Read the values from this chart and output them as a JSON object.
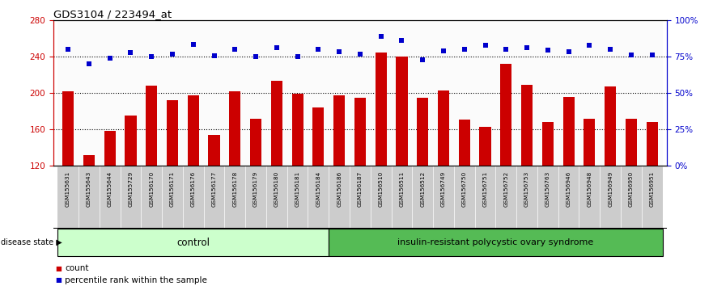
{
  "title": "GDS3104 / 223494_at",
  "samples": [
    "GSM155631",
    "GSM155643",
    "GSM155644",
    "GSM155729",
    "GSM156170",
    "GSM156171",
    "GSM156176",
    "GSM156177",
    "GSM156178",
    "GSM156179",
    "GSM156180",
    "GSM156181",
    "GSM156184",
    "GSM156186",
    "GSM156187",
    "GSM156510",
    "GSM156511",
    "GSM156512",
    "GSM156749",
    "GSM156750",
    "GSM156751",
    "GSM156752",
    "GSM156753",
    "GSM156763",
    "GSM156946",
    "GSM156948",
    "GSM156949",
    "GSM156950",
    "GSM156951"
  ],
  "bar_values": [
    202,
    132,
    158,
    175,
    208,
    192,
    197,
    154,
    202,
    172,
    213,
    199,
    184,
    197,
    195,
    244,
    240,
    195,
    203,
    171,
    163,
    232,
    209,
    168,
    196,
    172,
    207,
    172,
    168
  ],
  "blue_values": [
    248,
    232,
    238,
    244,
    240,
    243,
    253,
    241,
    248,
    240,
    250,
    240,
    248,
    245,
    243,
    262,
    258,
    236,
    246,
    248,
    252,
    248,
    250,
    247,
    245,
    252,
    248,
    242,
    242
  ],
  "control_count": 13,
  "disease_count": 16,
  "ymin": 120,
  "ymax": 280,
  "yticks_left": [
    120,
    160,
    200,
    240,
    280
  ],
  "yticks_right": [
    0,
    25,
    50,
    75,
    100
  ],
  "bar_color": "#cc0000",
  "blue_color": "#0000cc",
  "control_label": "control",
  "disease_label": "insulin-resistant polycystic ovary syndrome",
  "disease_state_label": "disease state",
  "legend_count_label": "count",
  "legend_percentile_label": "percentile rank within the sample",
  "control_bg": "#ccffcc",
  "disease_bg": "#55bb55",
  "tick_bg": "#cccccc",
  "plot_bg": "#ffffff"
}
